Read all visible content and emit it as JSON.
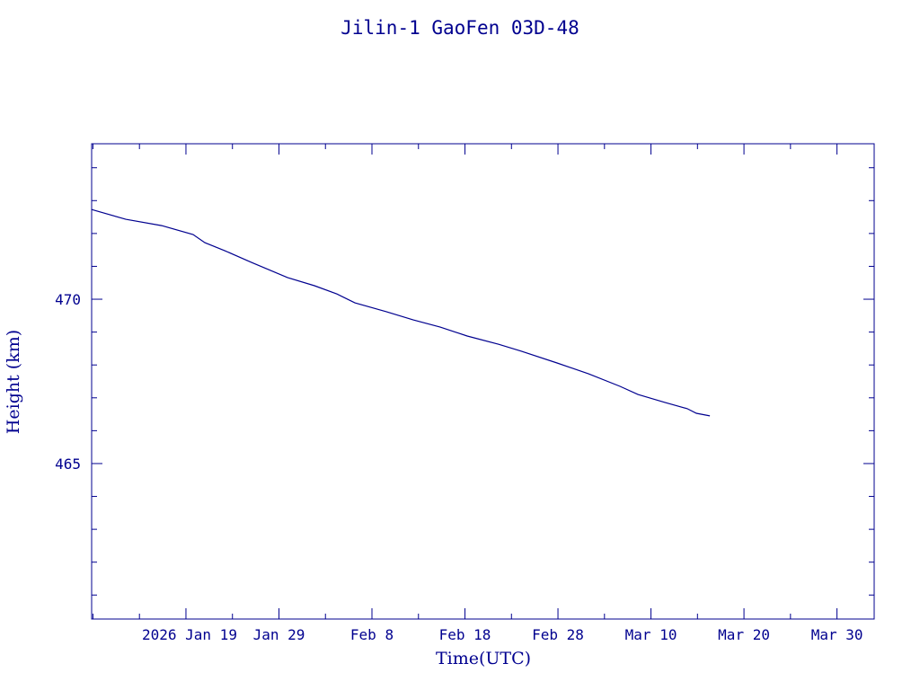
{
  "chart_data": {
    "type": "line",
    "title": "Jilin-1 GaoFen 03D-48",
    "xlabel": "Time(UTC)",
    "ylabel": "Height (km)",
    "x_units": "days since 2026-01-01 00:00 UTC",
    "xlim": [
      7.86,
      92.0
    ],
    "ylim": [
      460.27,
      474.73
    ],
    "x_major_ticks": [
      18,
      28,
      38,
      48,
      58,
      68,
      78,
      88
    ],
    "x_tick_labels": [
      "2026 Jan 19",
      "Jan 29",
      "Feb  8",
      "Feb 18",
      "Feb 28",
      "Mar 10",
      "Mar 20",
      "Mar 30"
    ],
    "x_minor_step": 5,
    "y_major_ticks": [
      465,
      470
    ],
    "y_tick_labels": [
      "465",
      "470"
    ],
    "y_minor_step": 1,
    "grid": false,
    "color": "#00008f",
    "series": [
      {
        "name": "Height",
        "x": [
          7.86,
          11.53,
          15.39,
          18.77,
          20.03,
          22.15,
          25.05,
          28.92,
          31.82,
          34.23,
          36.16,
          39.55,
          42.44,
          45.34,
          48.24,
          51.62,
          54.04,
          57.9,
          61.29,
          64.67,
          66.6,
          69.5,
          71.91,
          72.88,
          74.33
        ],
        "y": [
          472.73,
          472.43,
          472.24,
          471.97,
          471.72,
          471.48,
          471.12,
          470.66,
          470.41,
          470.16,
          469.89,
          469.62,
          469.37,
          469.15,
          468.88,
          468.63,
          468.42,
          468.06,
          467.73,
          467.35,
          467.1,
          466.86,
          466.67,
          466.53,
          466.45
        ]
      }
    ]
  }
}
